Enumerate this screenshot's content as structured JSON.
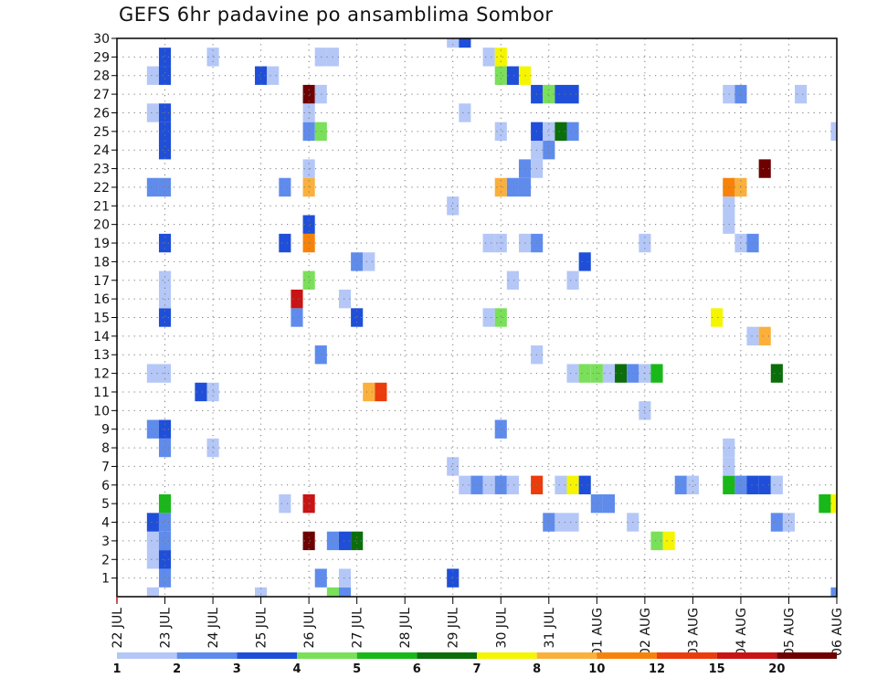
{
  "chart_data": {
    "type": "heatmap",
    "title": "GEFS 6hr padavine po ansamblima Sombor",
    "xlabel": "",
    "ylabel": "",
    "x_ticks": [
      "22 JUL",
      "23 JUL",
      "24 JUL",
      "25 JUL",
      "26 JUL",
      "27 JUL",
      "28 JUL",
      "29 JUL",
      "30 JUL",
      "31 JUL",
      "01 AUG",
      "02 AUG",
      "03 AUG",
      "04 AUG",
      "05 AUG",
      "06 AUG"
    ],
    "y_ticks": [
      "1",
      "2",
      "3",
      "4",
      "5",
      "6",
      "7",
      "8",
      "9",
      "10",
      "11",
      "12",
      "13",
      "14",
      "15",
      "16",
      "17",
      "18",
      "19",
      "20",
      "21",
      "22",
      "23",
      "24",
      "25",
      "26",
      "27",
      "28",
      "29",
      "30"
    ],
    "x_range": [
      "22 JUL",
      "06 AUG"
    ],
    "time_step": "6hr",
    "y_range": [
      0,
      30
    ],
    "grid": true,
    "legend_position": "bottom",
    "legend": {
      "labels": [
        "1",
        "2",
        "3",
        "4",
        "5",
        "6",
        "7",
        "8",
        "10",
        "12",
        "15",
        "20"
      ],
      "colors": [
        "#b4c7f7",
        "#5f8cec",
        "#1f4fd8",
        "#7ae05a",
        "#18b818",
        "#0b6e0b",
        "#f5f500",
        "#fbb03c",
        "#f7820a",
        "#ec3c0c",
        "#c81414",
        "#6e0000"
      ]
    },
    "cells": [
      {
        "t": "22 JUL 18",
        "m": 2,
        "lvl": 1
      },
      {
        "t": "22 JUL 18",
        "m": 3,
        "lvl": 1
      },
      {
        "t": "22 JUL 18",
        "m": 4,
        "lvl": 3
      },
      {
        "t": "22 JUL 18",
        "m": 9,
        "lvl": 2
      },
      {
        "t": "22 JUL 18",
        "m": 12,
        "lvl": 1
      },
      {
        "t": "22 JUL 18",
        "m": 22,
        "lvl": 2
      },
      {
        "t": "22 JUL 18",
        "m": 26,
        "lvl": 1
      },
      {
        "t": "22 JUL 18",
        "m": 28,
        "lvl": 1
      },
      {
        "t": "22 JUL 18",
        "m": 0,
        "lvl": 1
      },
      {
        "t": "23 JUL 00",
        "m": 1,
        "lvl": 2
      },
      {
        "t": "23 JUL 00",
        "m": 2,
        "lvl": 3
      },
      {
        "t": "23 JUL 00",
        "m": 3,
        "lvl": 2
      },
      {
        "t": "23 JUL 00",
        "m": 4,
        "lvl": 2
      },
      {
        "t": "23 JUL 00",
        "m": 5,
        "lvl": 5
      },
      {
        "t": "23 JUL 00",
        "m": 8,
        "lvl": 2
      },
      {
        "t": "23 JUL 00",
        "m": 9,
        "lvl": 3
      },
      {
        "t": "23 JUL 00",
        "m": 12,
        "lvl": 1
      },
      {
        "t": "23 JUL 00",
        "m": 15,
        "lvl": 3
      },
      {
        "t": "23 JUL 00",
        "m": 16,
        "lvl": 1
      },
      {
        "t": "23 JUL 00",
        "m": 17,
        "lvl": 1
      },
      {
        "t": "23 JUL 00",
        "m": 19,
        "lvl": 3
      },
      {
        "t": "23 JUL 00",
        "m": 22,
        "lvl": 2
      },
      {
        "t": "23 JUL 00",
        "m": 24,
        "lvl": 3
      },
      {
        "t": "23 JUL 00",
        "m": 25,
        "lvl": 3
      },
      {
        "t": "23 JUL 00",
        "m": 26,
        "lvl": 3
      },
      {
        "t": "23 JUL 00",
        "m": 28,
        "lvl": 3
      },
      {
        "t": "23 JUL 00",
        "m": 29,
        "lvl": 3
      },
      {
        "t": "23 JUL 18",
        "m": 11,
        "lvl": 3
      },
      {
        "t": "24 JUL 00",
        "m": 8,
        "lvl": 1
      },
      {
        "t": "24 JUL 00",
        "m": 11,
        "lvl": 1
      },
      {
        "t": "24 JUL 00",
        "m": 29,
        "lvl": 1
      },
      {
        "t": "25 JUL 00",
        "m": 0,
        "lvl": 1
      },
      {
        "t": "25 JUL 00",
        "m": 28,
        "lvl": 3
      },
      {
        "t": "25 JUL 06",
        "m": 28,
        "lvl": 1
      },
      {
        "t": "25 JUL 18",
        "m": 15,
        "lvl": 2
      },
      {
        "t": "25 JUL 12",
        "m": 5,
        "lvl": 1
      },
      {
        "t": "25 JUL 12",
        "m": 19,
        "lvl": 3
      },
      {
        "t": "25 JUL 12",
        "m": 22,
        "lvl": 2
      },
      {
        "t": "25 JUL 18",
        "m": 16,
        "lvl": 11
      },
      {
        "t": "26 JUL 00",
        "m": 3,
        "lvl": 12
      },
      {
        "t": "26 JUL 00",
        "m": 5,
        "lvl": 11
      },
      {
        "t": "26 JUL 00",
        "m": 17,
        "lvl": 4
      },
      {
        "t": "26 JUL 00",
        "m": 19,
        "lvl": 9
      },
      {
        "t": "26 JUL 00",
        "m": 20,
        "lvl": 3
      },
      {
        "t": "26 JUL 00",
        "m": 22,
        "lvl": 8
      },
      {
        "t": "26 JUL 00",
        "m": 23,
        "lvl": 1
      },
      {
        "t": "26 JUL 00",
        "m": 25,
        "lvl": 2
      },
      {
        "t": "26 JUL 00",
        "m": 26,
        "lvl": 1
      },
      {
        "t": "26 JUL 00",
        "m": 27,
        "lvl": 12
      },
      {
        "t": "26 JUL 06",
        "m": 1,
        "lvl": 2
      },
      {
        "t": "26 JUL 06",
        "m": 13,
        "lvl": 2
      },
      {
        "t": "26 JUL 06",
        "m": 25,
        "lvl": 4
      },
      {
        "t": "26 JUL 06",
        "m": 27,
        "lvl": 1
      },
      {
        "t": "26 JUL 06",
        "m": 29,
        "lvl": 1
      },
      {
        "t": "26 JUL 12",
        "m": 0,
        "lvl": 4
      },
      {
        "t": "26 JUL 12",
        "m": 29,
        "lvl": 1
      },
      {
        "t": "26 JUL 18",
        "m": 0,
        "lvl": 2
      },
      {
        "t": "26 JUL 18",
        "m": 3,
        "lvl": 3
      },
      {
        "t": "26 JUL 12",
        "m": 3,
        "lvl": 2
      },
      {
        "t": "27 JUL 00",
        "m": 3,
        "lvl": 6
      },
      {
        "t": "26 JUL 18",
        "m": 1,
        "lvl": 1
      },
      {
        "t": "26 JUL 18",
        "m": 16,
        "lvl": 1
      },
      {
        "t": "27 JUL 00",
        "m": 15,
        "lvl": 3
      },
      {
        "t": "27 JUL 00",
        "m": 18,
        "lvl": 2
      },
      {
        "t": "27 JUL 06",
        "m": 18,
        "lvl": 1
      },
      {
        "t": "27 JUL 06",
        "m": 11,
        "lvl": 8
      },
      {
        "t": "27 JUL 12",
        "m": 11,
        "lvl": 10
      },
      {
        "t": "29 JUL 00",
        "m": 1,
        "lvl": 3
      },
      {
        "t": "29 JUL 00",
        "m": 7,
        "lvl": 1
      },
      {
        "t": "29 JUL 00",
        "m": 21,
        "lvl": 1
      },
      {
        "t": "29 JUL 00",
        "m": 30,
        "lvl": 1
      },
      {
        "t": "29 JUL 06",
        "m": 6,
        "lvl": 1
      },
      {
        "t": "29 JUL 06",
        "m": 26,
        "lvl": 1
      },
      {
        "t": "29 JUL 06",
        "m": 30,
        "lvl": 3
      },
      {
        "t": "29 JUL 12",
        "m": 6,
        "lvl": 2
      },
      {
        "t": "29 JUL 18",
        "m": 6,
        "lvl": 1
      },
      {
        "t": "29 JUL 18",
        "m": 15,
        "lvl": 1
      },
      {
        "t": "29 JUL 18",
        "m": 19,
        "lvl": 1
      },
      {
        "t": "29 JUL 18",
        "m": 29,
        "lvl": 1
      },
      {
        "t": "30 JUL 00",
        "m": 6,
        "lvl": 2
      },
      {
        "t": "30 JUL 00",
        "m": 9,
        "lvl": 2
      },
      {
        "t": "30 JUL 00",
        "m": 15,
        "lvl": 4
      },
      {
        "t": "30 JUL 00",
        "m": 19,
        "lvl": 1
      },
      {
        "t": "30 JUL 00",
        "m": 22,
        "lvl": 8
      },
      {
        "t": "30 JUL 00",
        "m": 25,
        "lvl": 1
      },
      {
        "t": "30 JUL 00",
        "m": 28,
        "lvl": 4
      },
      {
        "t": "30 JUL 00",
        "m": 29,
        "lvl": 7
      },
      {
        "t": "30 JUL 06",
        "m": 6,
        "lvl": 1
      },
      {
        "t": "30 JUL 06",
        "m": 17,
        "lvl": 1
      },
      {
        "t": "30 JUL 06",
        "m": 22,
        "lvl": 2
      },
      {
        "t": "30 JUL 06",
        "m": 28,
        "lvl": 3
      },
      {
        "t": "30 JUL 12",
        "m": 19,
        "lvl": 1
      },
      {
        "t": "30 JUL 12",
        "m": 22,
        "lvl": 2
      },
      {
        "t": "30 JUL 12",
        "m": 23,
        "lvl": 2
      },
      {
        "t": "30 JUL 12",
        "m": 28,
        "lvl": 7
      },
      {
        "t": "30 JUL 18",
        "m": 6,
        "lvl": 10
      },
      {
        "t": "30 JUL 18",
        "m": 13,
        "lvl": 1
      },
      {
        "t": "30 JUL 18",
        "m": 19,
        "lvl": 2
      },
      {
        "t": "30 JUL 18",
        "m": 23,
        "lvl": 1
      },
      {
        "t": "30 JUL 18",
        "m": 24,
        "lvl": 1
      },
      {
        "t": "30 JUL 18",
        "m": 25,
        "lvl": 3
      },
      {
        "t": "30 JUL 18",
        "m": 27,
        "lvl": 3
      },
      {
        "t": "31 JUL 00",
        "m": 4,
        "lvl": 2
      },
      {
        "t": "31 JUL 00",
        "m": 24,
        "lvl": 2
      },
      {
        "t": "31 JUL 00",
        "m": 25,
        "lvl": 1
      },
      {
        "t": "31 JUL 00",
        "m": 27,
        "lvl": 4
      },
      {
        "t": "31 JUL 06",
        "m": 4,
        "lvl": 1
      },
      {
        "t": "31 JUL 06",
        "m": 6,
        "lvl": 1
      },
      {
        "t": "31 JUL 06",
        "m": 25,
        "lvl": 6
      },
      {
        "t": "31 JUL 06",
        "m": 27,
        "lvl": 3
      },
      {
        "t": "31 JUL 12",
        "m": 4,
        "lvl": 1
      },
      {
        "t": "31 JUL 12",
        "m": 6,
        "lvl": 7
      },
      {
        "t": "31 JUL 12",
        "m": 12,
        "lvl": 1
      },
      {
        "t": "31 JUL 12",
        "m": 17,
        "lvl": 1
      },
      {
        "t": "31 JUL 12",
        "m": 25,
        "lvl": 2
      },
      {
        "t": "31 JUL 12",
        "m": 27,
        "lvl": 3
      },
      {
        "t": "31 JUL 18",
        "m": 6,
        "lvl": 3
      },
      {
        "t": "31 JUL 18",
        "m": 12,
        "lvl": 4
      },
      {
        "t": "31 JUL 18",
        "m": 18,
        "lvl": 3
      },
      {
        "t": "01 AUG 00",
        "m": 5,
        "lvl": 2
      },
      {
        "t": "01 AUG 00",
        "m": 12,
        "lvl": 4
      },
      {
        "t": "01 AUG 06",
        "m": 5,
        "lvl": 2
      },
      {
        "t": "01 AUG 06",
        "m": 12,
        "lvl": 1
      },
      {
        "t": "01 AUG 12",
        "m": 12,
        "lvl": 6
      },
      {
        "t": "01 AUG 18",
        "m": 4,
        "lvl": 1
      },
      {
        "t": "01 AUG 18",
        "m": 12,
        "lvl": 2
      },
      {
        "t": "02 AUG 00",
        "m": 10,
        "lvl": 1
      },
      {
        "t": "02 AUG 00",
        "m": 12,
        "lvl": 1
      },
      {
        "t": "02 AUG 00",
        "m": 19,
        "lvl": 1
      },
      {
        "t": "02 AUG 06",
        "m": 3,
        "lvl": 4
      },
      {
        "t": "02 AUG 06",
        "m": 12,
        "lvl": 5
      },
      {
        "t": "02 AUG 12",
        "m": 3,
        "lvl": 7
      },
      {
        "t": "02 AUG 18",
        "m": 6,
        "lvl": 2
      },
      {
        "t": "03 AUG 00",
        "m": 6,
        "lvl": 1
      },
      {
        "t": "03 AUG 12",
        "m": 15,
        "lvl": 7
      },
      {
        "t": "03 AUG 18",
        "m": 6,
        "lvl": 5
      },
      {
        "t": "03 AUG 18",
        "m": 7,
        "lvl": 1
      },
      {
        "t": "03 AUG 18",
        "m": 8,
        "lvl": 1
      },
      {
        "t": "03 AUG 18",
        "m": 20,
        "lvl": 1
      },
      {
        "t": "03 AUG 18",
        "m": 21,
        "lvl": 1
      },
      {
        "t": "03 AUG 18",
        "m": 22,
        "lvl": 9
      },
      {
        "t": "03 AUG 18",
        "m": 27,
        "lvl": 1
      },
      {
        "t": "04 AUG 00",
        "m": 6,
        "lvl": 2
      },
      {
        "t": "04 AUG 00",
        "m": 19,
        "lvl": 1
      },
      {
        "t": "04 AUG 00",
        "m": 22,
        "lvl": 8
      },
      {
        "t": "04 AUG 00",
        "m": 27,
        "lvl": 2
      },
      {
        "t": "04 AUG 06",
        "m": 6,
        "lvl": 3
      },
      {
        "t": "04 AUG 06",
        "m": 14,
        "lvl": 1
      },
      {
        "t": "04 AUG 06",
        "m": 19,
        "lvl": 2
      },
      {
        "t": "04 AUG 12",
        "m": 6,
        "lvl": 3
      },
      {
        "t": "04 AUG 12",
        "m": 14,
        "lvl": 8
      },
      {
        "t": "04 AUG 12",
        "m": 23,
        "lvl": 12
      },
      {
        "t": "04 AUG 18",
        "m": 4,
        "lvl": 2
      },
      {
        "t": "04 AUG 18",
        "m": 6,
        "lvl": 1
      },
      {
        "t": "04 AUG 18",
        "m": 12,
        "lvl": 6
      },
      {
        "t": "05 AUG 00",
        "m": 4,
        "lvl": 1
      },
      {
        "t": "05 AUG 06",
        "m": 27,
        "lvl": 1
      },
      {
        "t": "05 AUG 18",
        "m": 5,
        "lvl": 5
      },
      {
        "t": "06 AUG 00",
        "m": 0,
        "lvl": 2
      },
      {
        "t": "06 AUG 00",
        "m": 5,
        "lvl": 7
      },
      {
        "t": "06 AUG 00",
        "m": 25,
        "lvl": 1
      }
    ]
  }
}
